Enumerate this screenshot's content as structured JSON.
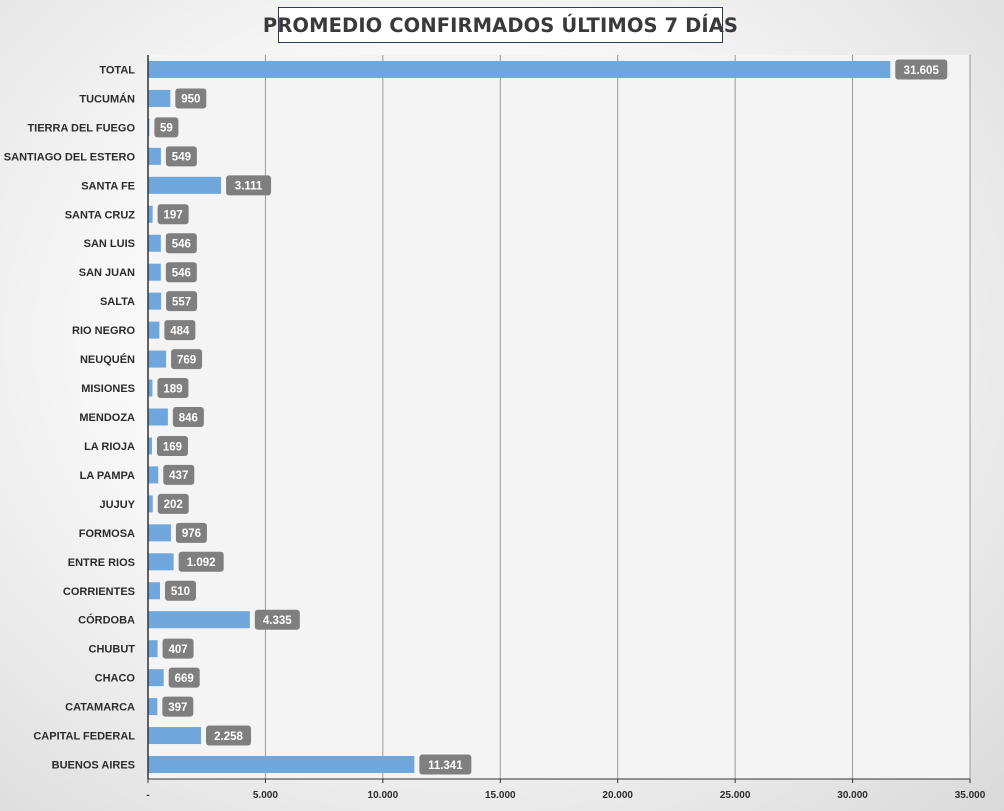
{
  "chart_data": {
    "type": "bar",
    "orientation": "horizontal",
    "title": "PROMEDIO CONFIRMADOS ÚLTIMOS 7 DÍAS",
    "categories": [
      "TOTAL",
      "TUCUMÁN",
      "TIERRA  DEL FUEGO",
      "SANTIAGO  DEL ESTERO",
      "SANTA FE",
      "SANTA CRUZ",
      "SAN LUIS",
      "SAN JUAN",
      "SALTA",
      "RIO  NEGRO",
      "NEUQUÉN",
      "MISIONES",
      "MENDOZA",
      "LA RIOJA",
      "LA PAMPA",
      "JUJUY",
      "FORMOSA",
      "ENTRE  RIOS",
      "CORRIENTES",
      "CÓRDOBA",
      "CHUBUT",
      "CHACO",
      "CATAMARCA",
      "CAPITAL  FEDERAL",
      "BUENOS  AIRES"
    ],
    "values": [
      31605,
      950,
      59,
      549,
      3111,
      197,
      546,
      546,
      557,
      484,
      769,
      189,
      846,
      169,
      437,
      202,
      976,
      1092,
      510,
      4335,
      407,
      669,
      397,
      2258,
      11341
    ],
    "data_labels": [
      "31.605",
      "950",
      "59",
      "549",
      "3.111",
      "197",
      "546",
      "546",
      "557",
      "484",
      "769",
      "189",
      "846",
      "169",
      "437",
      "202",
      "976",
      "1.092",
      "510",
      "4.335",
      "407",
      "669",
      "397",
      "2.258",
      "11.341"
    ],
    "xlim": [
      0,
      35000
    ],
    "x_ticks": [
      0,
      5000,
      10000,
      15000,
      20000,
      25000,
      30000,
      35000
    ],
    "x_tick_labels": [
      "-",
      "5.000",
      "10.000",
      "15.000",
      "20.000",
      "25.000",
      "30.000",
      "35.000"
    ],
    "grid": "vertical",
    "bar_color": "#6fa6dc",
    "label_bg_color": "#7f7f7f",
    "label_text_color": "#ffffff",
    "grid_color": "#9a9a9a",
    "axis_color": "#333333"
  }
}
